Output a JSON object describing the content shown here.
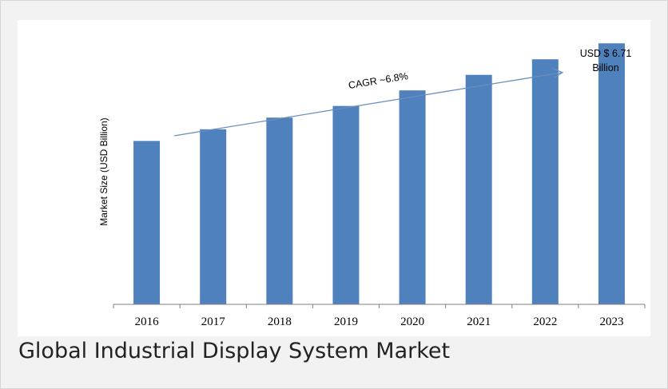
{
  "caption": "Global Industrial Display System Market",
  "chart_data": {
    "type": "bar",
    "title": "",
    "xlabel": "",
    "ylabel": "Market Size (USD Billion)",
    "categories": [
      "2016",
      "2017",
      "2018",
      "2019",
      "2020",
      "2021",
      "2022",
      "2023"
    ],
    "values": [
      4.2,
      4.5,
      4.8,
      5.1,
      5.5,
      5.9,
      6.3,
      6.71
    ],
    "ylim": [
      0,
      6.9
    ],
    "bar_color": "#4f81bd",
    "grid": false,
    "legend": "none",
    "annotations": {
      "cagr": "CAGR ~6.8%",
      "last_value_line1": "USD $ 6.71",
      "last_value_line2": "Billion"
    }
  }
}
